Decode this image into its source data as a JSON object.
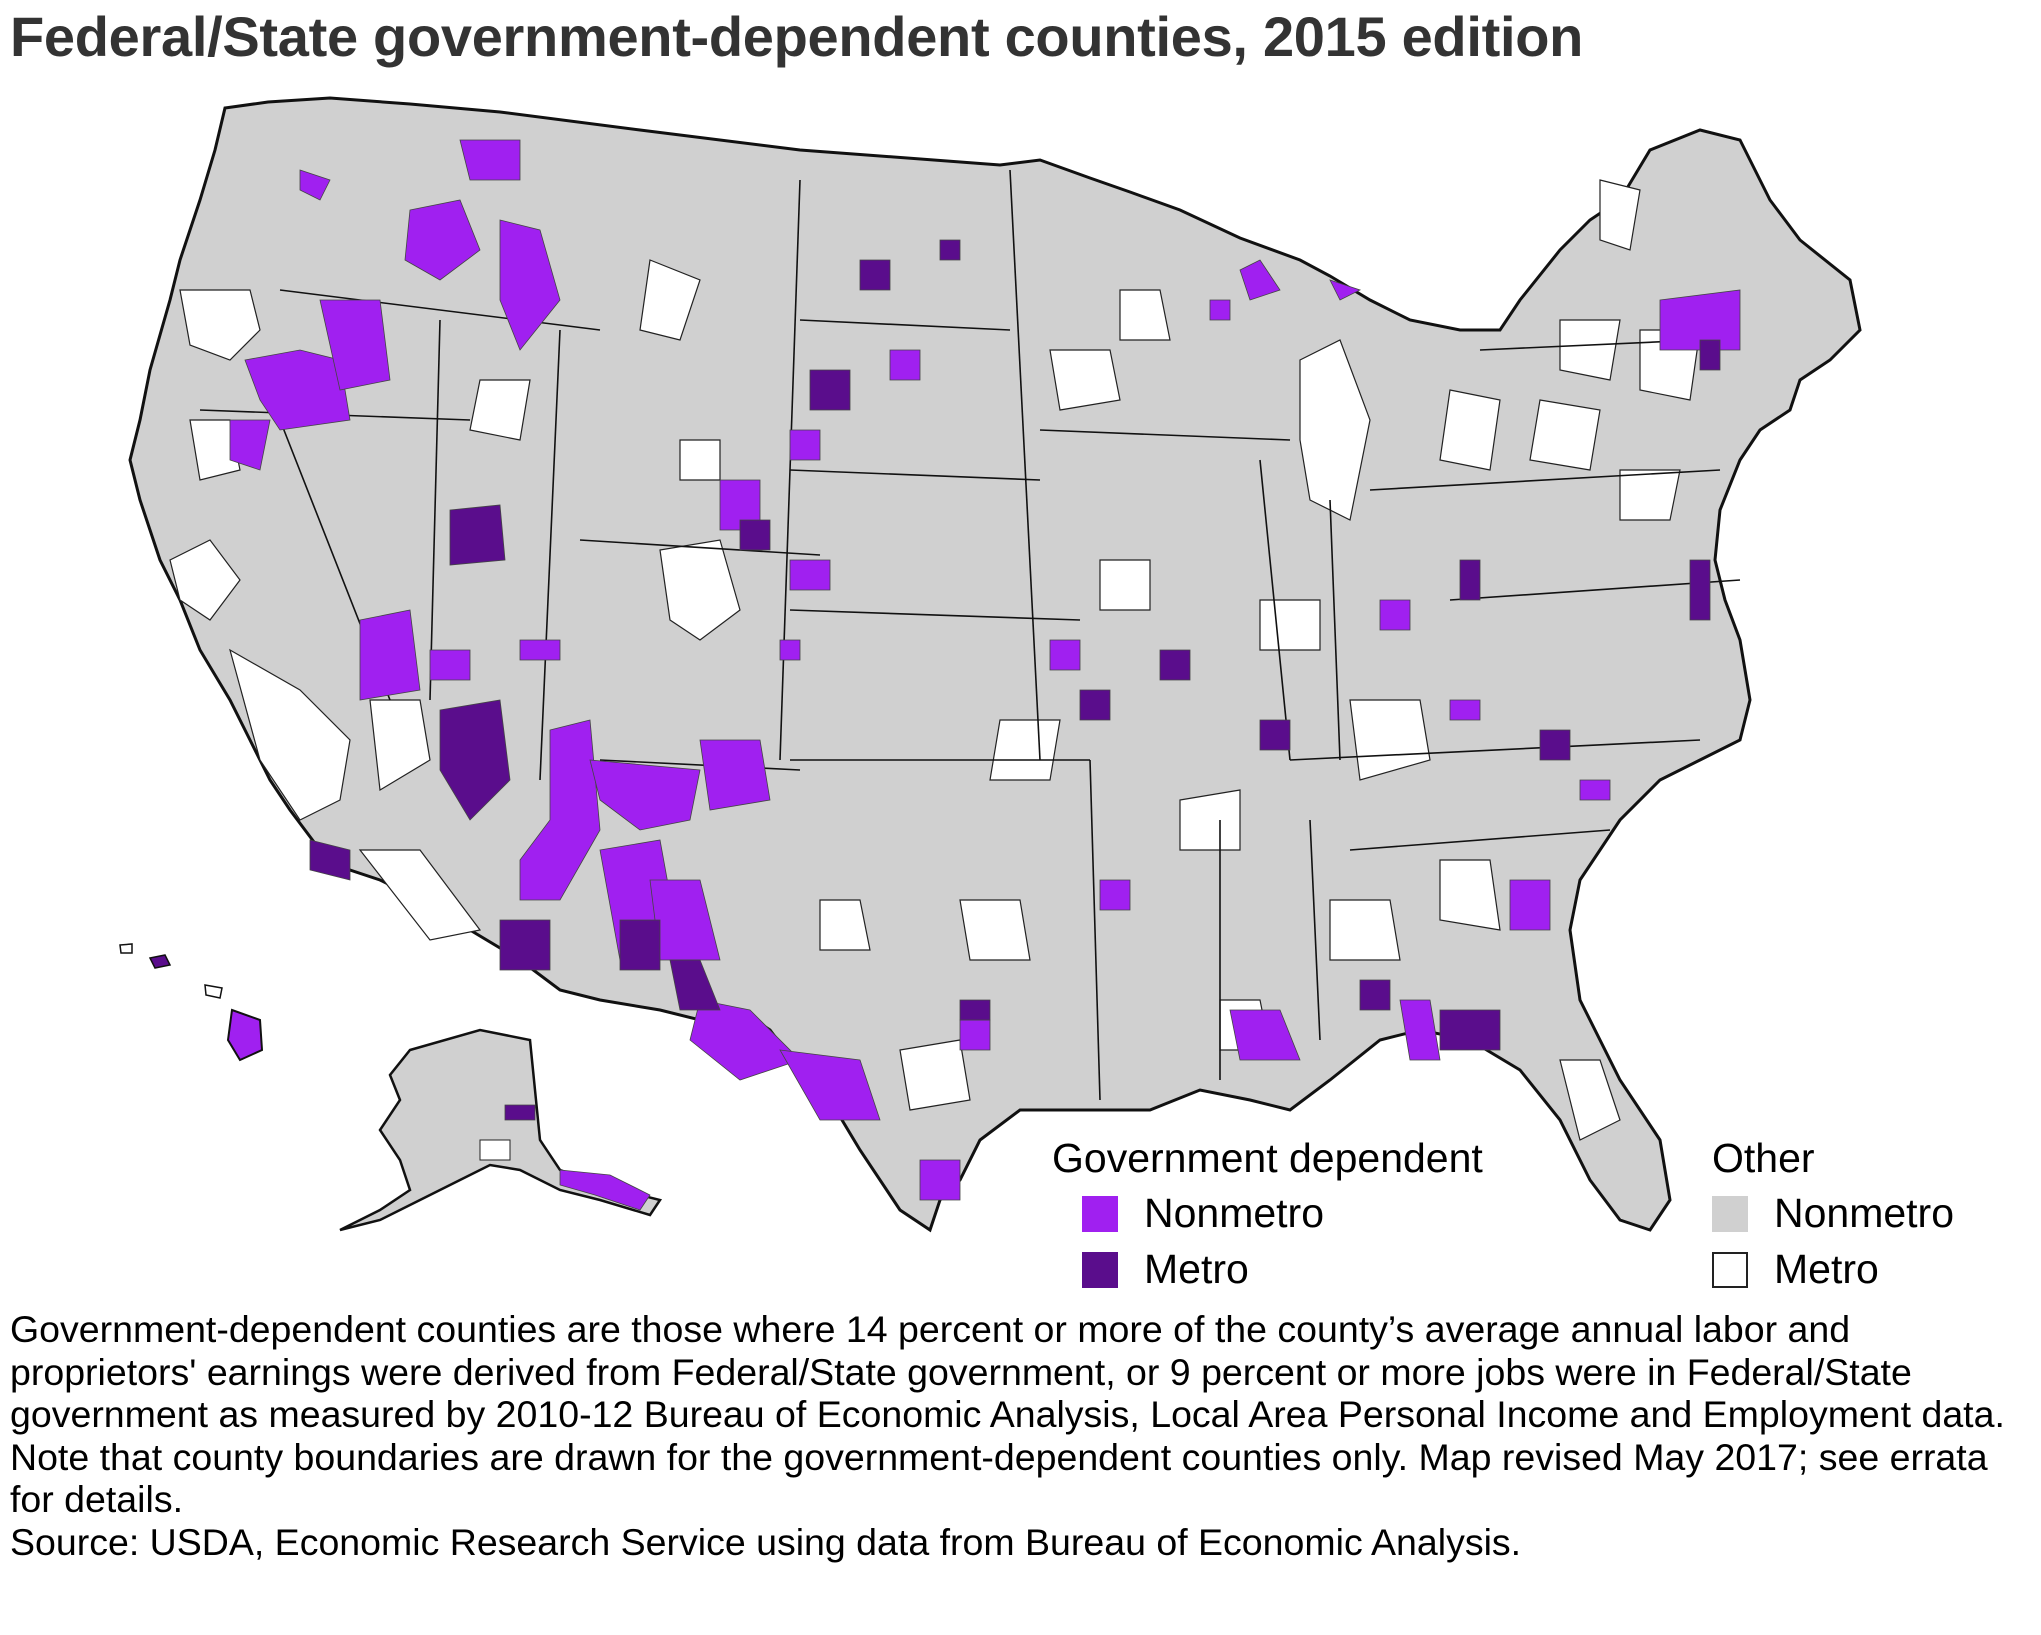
{
  "title": "Federal/State government-dependent counties, 2015 edition",
  "legend": {
    "group1": {
      "heading": "Government dependent",
      "items": [
        {
          "label": "Nonmetro",
          "color": "#a020f0"
        },
        {
          "label": "Metro",
          "color": "#5a0d8c"
        }
      ]
    },
    "group2": {
      "heading": "Other",
      "items": [
        {
          "label": "Nonmetro",
          "color": "#d0d0d0"
        },
        {
          "label": "Metro",
          "color": "#ffffff"
        }
      ]
    }
  },
  "colors": {
    "state_border": "#111111",
    "county_border": "#555555"
  },
  "note": {
    "text": "Government-dependent counties are those where 14 percent or more of the county’s average annual labor and proprietors' earnings were derived from Federal/State government, or 9 percent or more jobs were in Federal/State government as measured by 2010-12 Bureau of Economic Analysis, Local Area Personal Income and Employment data. Note that county boundaries are drawn for the government-dependent counties only. Map revised May 2017; see errata for details.",
    "source": "Source: USDA, Economic Research Service using data from Bureau of Economic Analysis."
  }
}
